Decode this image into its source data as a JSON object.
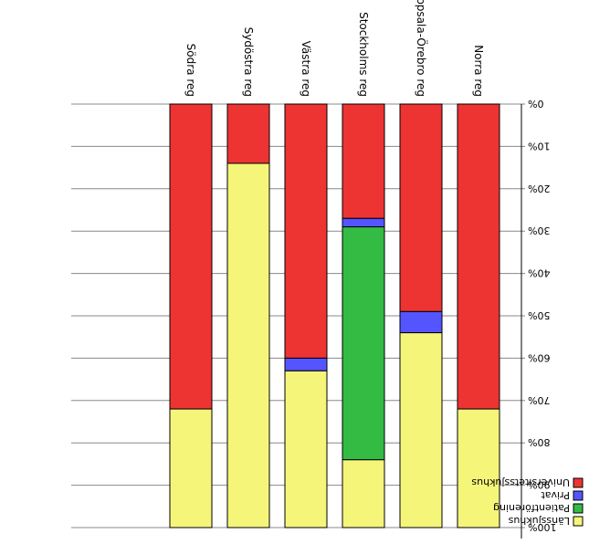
{
  "chart_data": {
    "type": "bar",
    "orientation": "stacked-100-percent",
    "rendered_upside_down": true,
    "categories": [
      "Norra reg",
      "Uppsala-Örebro reg",
      "Stockholms reg",
      "Västra reg",
      "Sydöstra reg",
      "Södra reg"
    ],
    "series": [
      {
        "name": "Universitetssjukhus",
        "color": "#ee3333",
        "values": [
          72,
          49,
          27,
          60,
          14,
          72
        ]
      },
      {
        "name": "Privat",
        "color": "#5555ff",
        "values": [
          0,
          5,
          2,
          3,
          0,
          0
        ]
      },
      {
        "name": "Patientförening",
        "color": "#33bb44",
        "values": [
          0,
          0,
          55,
          0,
          0,
          0
        ]
      },
      {
        "name": "Länssjukhus",
        "color": "#f5f57a",
        "values": [
          28,
          46,
          16,
          37,
          86,
          28
        ]
      }
    ],
    "yticks": [
      "0%",
      "10%",
      "20%",
      "30%",
      "40%",
      "50%",
      "60%",
      "70%",
      "80%",
      "90%",
      "100%"
    ],
    "ylim": [
      0,
      100
    ],
    "grid": true,
    "legend_position": "bottom-right"
  }
}
